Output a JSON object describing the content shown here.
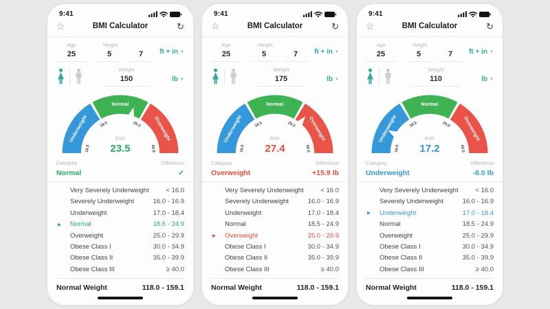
{
  "page": {
    "background": "#e7e8e8"
  },
  "colors": {
    "accent_teal": "#35a79c",
    "green": "#27ae60",
    "red": "#e74c3c",
    "blue": "#3498db",
    "gauge_blue": "#3598db",
    "gauge_green": "#3fb254",
    "gauge_red": "#ea5348"
  },
  "status": {
    "time": "9:41"
  },
  "header": {
    "title": "BMI Calculator",
    "star_icon": "☆",
    "refresh_icon": "↻"
  },
  "inputs": {
    "age_label": "Age",
    "height_label": "Height",
    "weight_label": "Weight",
    "height_unit": "ft + in",
    "weight_unit": "lb",
    "caret": "▼"
  },
  "gauge": {
    "type": "gauge",
    "bmi_label": "BMI",
    "segments": [
      {
        "label": "Underweight",
        "from": 16.0,
        "to": 18.5,
        "color": "#3598db"
      },
      {
        "label": "Normal",
        "from": 18.5,
        "to": 25.0,
        "color": "#3fb254"
      },
      {
        "label": "Overweight",
        "from": 25.0,
        "to": 40.0,
        "color": "#ea5348"
      }
    ],
    "ticks": [
      {
        "label": "16.0",
        "value": 16.0
      },
      {
        "label": "18.5",
        "value": 18.5
      },
      {
        "label": "25.0",
        "value": 25.0
      },
      {
        "label": "40.0",
        "value": 40.0
      }
    ]
  },
  "table": {
    "category_header": "Category",
    "difference_header": "Difference",
    "rows": [
      {
        "name": "Very Severely Underweight",
        "range": "< 16.0"
      },
      {
        "name": "Severely Underweight",
        "range": "16.0 - 16.9"
      },
      {
        "name": "Underweight",
        "range": "17.0 - 18.4"
      },
      {
        "name": "Normal",
        "range": "18.5 - 24.9"
      },
      {
        "name": "Overweight",
        "range": "25.0 - 29.9"
      },
      {
        "name": "Obese Class I",
        "range": "30.0 - 34.9"
      },
      {
        "name": "Obese Class II",
        "range": "35.0 - 39.9"
      },
      {
        "name": "Obese Class III",
        "range": "≥ 40.0"
      }
    ],
    "footer_label": "Normal Weight",
    "footer_range": "118.0 - 159.1"
  },
  "phones": [
    {
      "age": "25",
      "height_ft": "5",
      "height_in": "7",
      "weight": "150",
      "bmi": "23.5",
      "bmi_value": 23.5,
      "accent": "#27ae60",
      "category": "Normal",
      "difference": "✓",
      "highlight_index": 3
    },
    {
      "age": "25",
      "height_ft": "5",
      "height_in": "7",
      "weight": "175",
      "bmi": "27.4",
      "bmi_value": 27.4,
      "accent": "#e74c3c",
      "category": "Overweight",
      "difference": "+15.9 lb",
      "highlight_index": 4
    },
    {
      "age": "25",
      "height_ft": "5",
      "height_in": "7",
      "weight": "110",
      "bmi": "17.2",
      "bmi_value": 17.2,
      "accent": "#3498db",
      "category": "Underweight",
      "difference": "-8.0 lb",
      "highlight_index": 2
    }
  ]
}
